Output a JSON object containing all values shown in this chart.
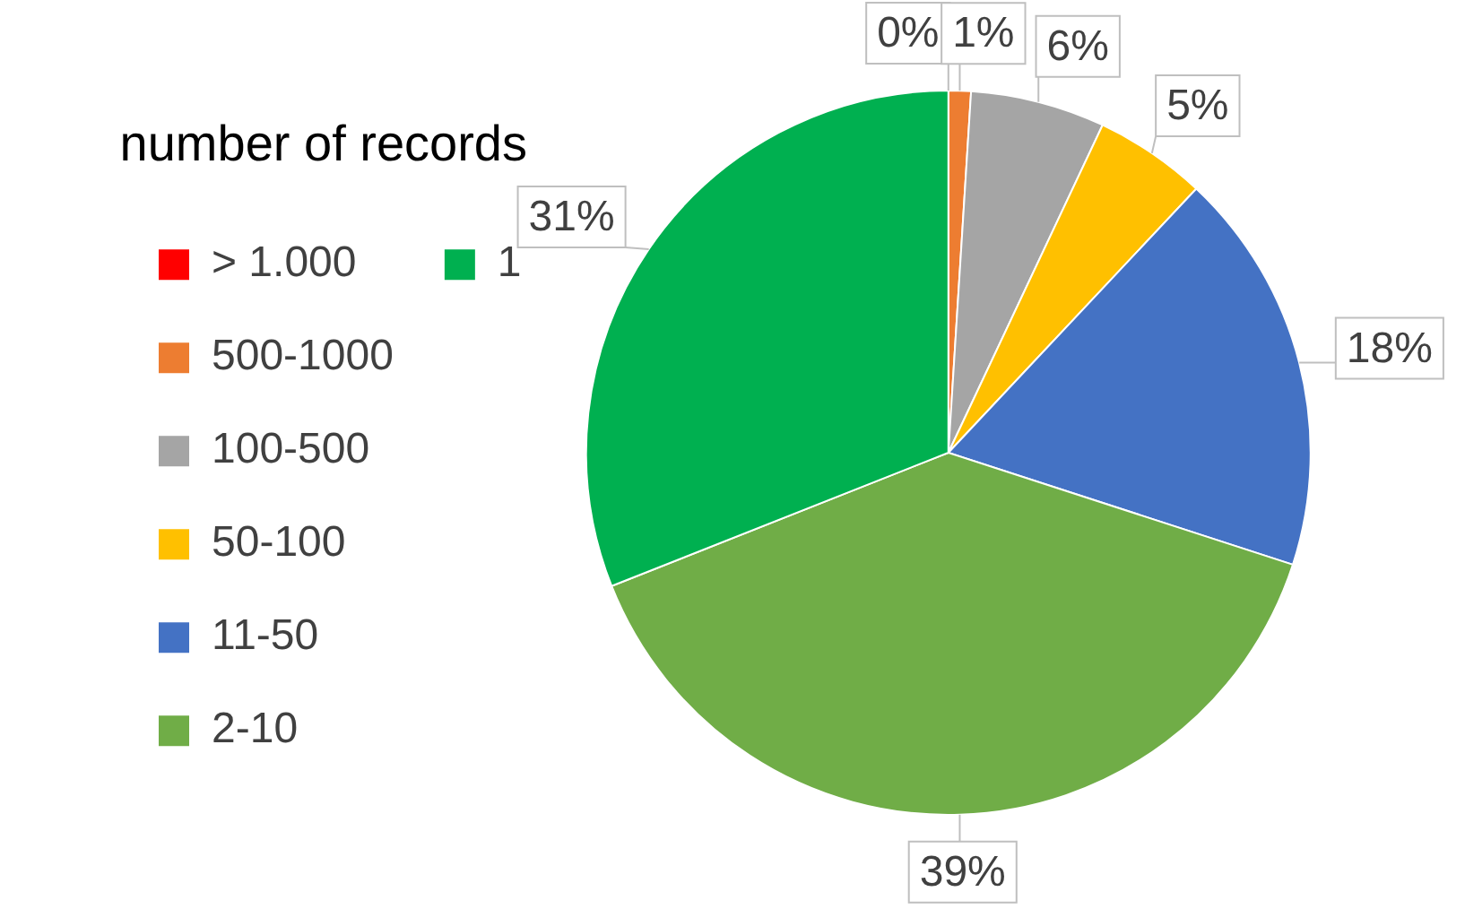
{
  "chart_data": {
    "type": "pie",
    "legend_title": "number of records",
    "categories": [
      "> 1.000",
      "500-1000",
      "100-500",
      "50-100",
      "11-50",
      "2-10",
      "1"
    ],
    "values": [
      0,
      1,
      6,
      5,
      18,
      39,
      31
    ],
    "value_labels": [
      "0%",
      "1%",
      "6%",
      "5%",
      "18%",
      "39%",
      "31%"
    ],
    "colors": [
      "#ff0000",
      "#ed7d31",
      "#a5a5a5",
      "#ffc000",
      "#4472c4",
      "#70ad47",
      "#00b050"
    ],
    "legend": "left"
  }
}
